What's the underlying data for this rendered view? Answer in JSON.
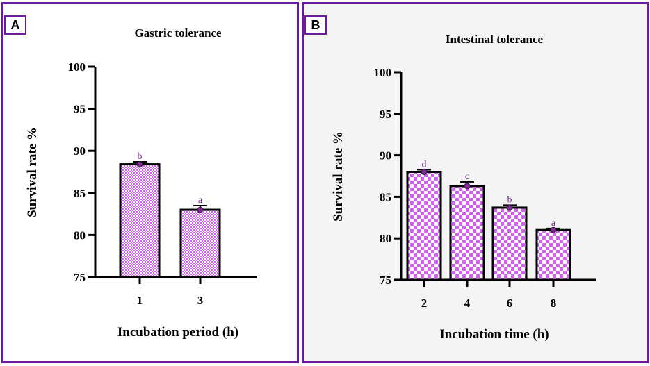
{
  "colors": {
    "frame": "#6a1b9a",
    "bar_fill": "#d25ff0",
    "marker": "#7b2d8e",
    "letter": "#7b2d8e"
  },
  "panels": [
    {
      "label": "A"
    },
    {
      "label": "B"
    }
  ],
  "chart_data": [
    {
      "type": "bar",
      "title": "Gastric tolerance",
      "xlabel": "Incubation period (h)",
      "ylabel": "Survival rate %",
      "categories": [
        "1",
        "3"
      ],
      "values": [
        88.4,
        83.0
      ],
      "errors": [
        0.3,
        0.5
      ],
      "letters": [
        "b",
        "a"
      ],
      "ylim": [
        75,
        100
      ],
      "yticks": [
        "75",
        "80",
        "85",
        "90",
        "95",
        "100"
      ]
    },
    {
      "type": "bar",
      "title": "Intestinal tolerance",
      "xlabel": "Incubation time (h)",
      "ylabel": "Survival rate %",
      "categories": [
        "2",
        "4",
        "6",
        "8"
      ],
      "values": [
        88.0,
        86.3,
        83.7,
        81.0
      ],
      "errors": [
        0.25,
        0.5,
        0.3,
        0.2
      ],
      "letters": [
        "d",
        "c",
        "b",
        "a"
      ],
      "ylim": [
        75,
        100
      ],
      "yticks": [
        "75",
        "80",
        "85",
        "90",
        "95",
        "100"
      ]
    }
  ]
}
